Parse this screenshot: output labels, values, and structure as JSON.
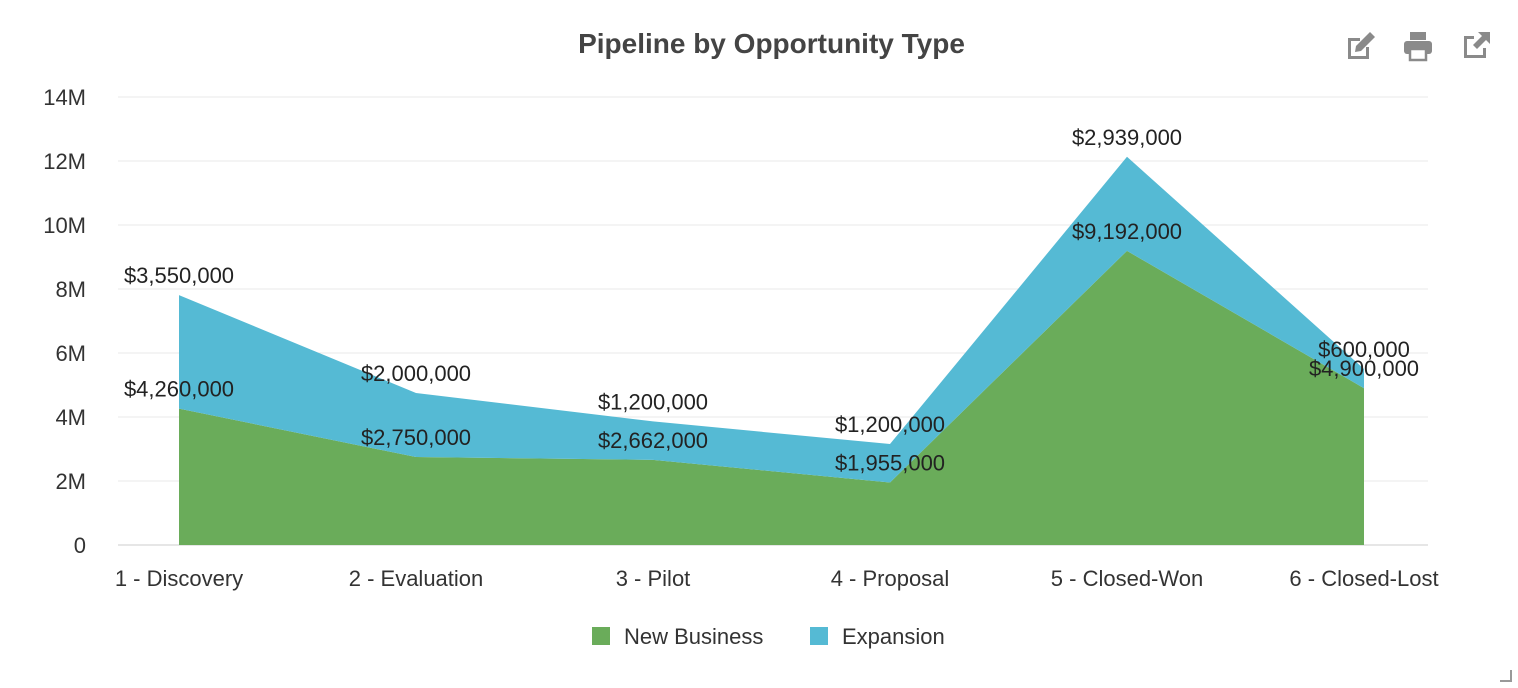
{
  "chart_data": {
    "type": "area",
    "stacked": true,
    "title": "Pipeline by Opportunity Type",
    "categories": [
      "1 - Discovery",
      "2 - Evaluation",
      "3 - Pilot",
      "4 - Proposal",
      "5 - Closed-Won",
      "6 - Closed-Lost"
    ],
    "series": [
      {
        "name": "New Business",
        "color": "#6aac5a",
        "values": [
          4260000,
          2750000,
          2662000,
          1955000,
          9192000,
          4900000
        ],
        "labels": [
          "$4,260,000",
          "$2,750,000",
          "$2,662,000",
          "$1,955,000",
          "$9,192,000",
          "$4,900,000"
        ]
      },
      {
        "name": "Expansion",
        "color": "#55bad4",
        "values": [
          3550000,
          2000000,
          1200000,
          1200000,
          2939000,
          600000
        ],
        "labels": [
          "$3,550,000",
          "$2,000,000",
          "$1,200,000",
          "$1,200,000",
          "$2,939,000",
          "$600,000"
        ]
      }
    ],
    "ylim": [
      0,
      14000000
    ],
    "yticks": [
      0,
      2000000,
      4000000,
      6000000,
      8000000,
      10000000,
      12000000,
      14000000
    ],
    "ytick_labels": [
      "0",
      "2M",
      "4M",
      "6M",
      "8M",
      "10M",
      "12M",
      "14M"
    ],
    "grid": true,
    "legend_position": "bottom"
  },
  "toolbar": {
    "edit_icon": "edit-icon",
    "print_icon": "print-icon",
    "external_icon": "external-link-icon"
  }
}
